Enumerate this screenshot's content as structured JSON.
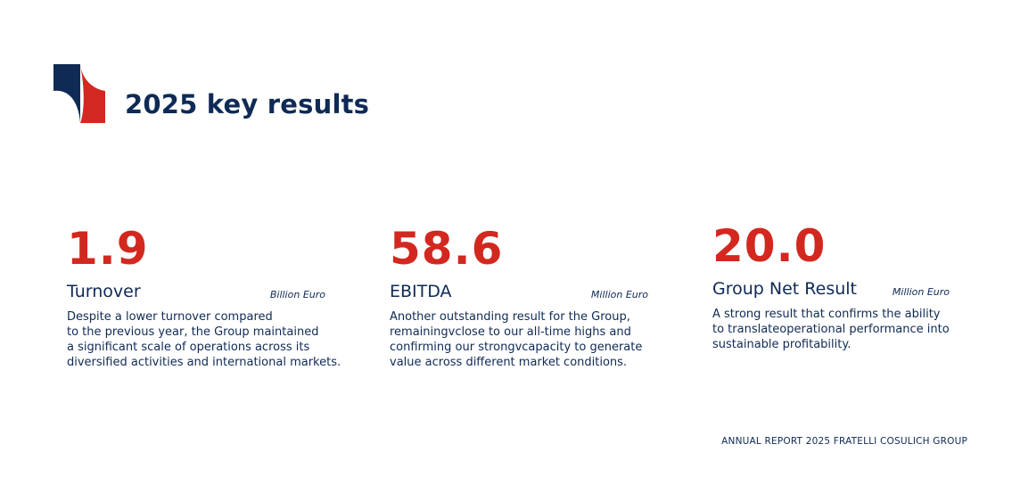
{
  "header": {
    "title": "2025 key results"
  },
  "kpis": [
    {
      "value": "1.9",
      "label": "Turnover",
      "unit": "Billion Euro",
      "description": [
        "Despite a lower turnover compared",
        "to the previous year, the Group maintained",
        "a significant scale of operations across its",
        "diversified activities and international markets."
      ]
    },
    {
      "value": "58.6",
      "label": "EBITDA",
      "unit": "Million Euro",
      "description": [
        "Another outstanding result for the Group,",
        "remainingvclose to our all-time highs and",
        "confirming our strongvcapacity to generate",
        "value across different market conditions."
      ]
    },
    {
      "value": "20.0",
      "label": "Group Net Result",
      "unit": "Million Euro",
      "description": [
        "A strong result that confirms the ability",
        "to translateoperational performance into",
        "sustainable profitability."
      ]
    }
  ],
  "footer": {
    "text": "ANNUAL REPORT 2025 FRATELLI COSULICH GROUP"
  }
}
